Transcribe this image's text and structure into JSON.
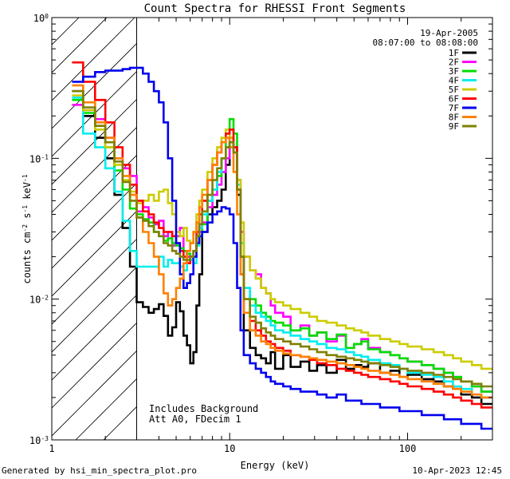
{
  "chart_data": {
    "type": "line",
    "title": "Count Spectra for RHESSI Front Segments",
    "xlabel": "Energy (keV)",
    "ylabel": "counts cm",
    "ylabel_sup1": "-2",
    "ylabel_mid": " s",
    "ylabel_sup2": "-1",
    "ylabel_tail": " keV",
    "ylabel_sup3": "-1",
    "xscale": "log",
    "yscale": "log",
    "xlim": [
      1,
      300
    ],
    "ylim": [
      0.001,
      1
    ],
    "x_ticks": [
      {
        "value": 1,
        "label": "1"
      },
      {
        "value": 10,
        "label": "10"
      },
      {
        "value": 100,
        "label": "100"
      }
    ],
    "y_ticks": [
      {
        "value": 0.001,
        "base": "10",
        "exp": "-3"
      },
      {
        "value": 0.01,
        "base": "10",
        "exp": "-2"
      },
      {
        "value": 0.1,
        "base": "10",
        "exp": "-1"
      },
      {
        "value": 1,
        "base": "10",
        "exp": "0"
      }
    ],
    "legend_position": "top-right",
    "date_text": "19-Apr-2005",
    "time_text": "08:07:00 to 08:08:00",
    "annotation_line1": "Includes Background",
    "annotation_line2": "Att A0, FDecim 1",
    "hatched_below_keV": 3,
    "energy_bins_keV": [
      1.3,
      1.5,
      1.75,
      2.0,
      2.25,
      2.5,
      2.75,
      3.0,
      3.25,
      3.5,
      3.75,
      4.0,
      4.25,
      4.5,
      4.75,
      5.0,
      5.25,
      5.5,
      5.75,
      6.0,
      6.25,
      6.5,
      6.75,
      7.0,
      7.5,
      8.0,
      8.5,
      9.0,
      9.5,
      10.0,
      10.5,
      11.0,
      11.5,
      12.0,
      13.0,
      14.0,
      15.0,
      16.0,
      17.0,
      18.0,
      20.0,
      22.0,
      25.0,
      28.0,
      31.0,
      35.0,
      40.0,
      45.0,
      50.0,
      55.0,
      60.0,
      70.0,
      80.0,
      90.0,
      100.0,
      120.0,
      140.0,
      160.0,
      180.0,
      200.0,
      230.0,
      260.0,
      300.0
    ],
    "series": [
      {
        "name": "1F",
        "color": "#000000",
        "values": [
          0.3,
          0.2,
          0.14,
          0.1,
          0.055,
          0.032,
          0.017,
          0.0095,
          0.0088,
          0.008,
          0.0085,
          0.0092,
          0.0076,
          0.0055,
          0.0063,
          0.0095,
          0.0082,
          0.0055,
          0.0047,
          0.0035,
          0.0042,
          0.009,
          0.015,
          0.03,
          0.04,
          0.045,
          0.05,
          0.06,
          0.09,
          0.14,
          0.12,
          0.055,
          0.015,
          0.006,
          0.0045,
          0.004,
          0.0038,
          0.0035,
          0.0042,
          0.0032,
          0.004,
          0.0033,
          0.0036,
          0.0031,
          0.0034,
          0.003,
          0.0037,
          0.0032,
          0.0034,
          0.0033,
          0.0035,
          0.003,
          0.0031,
          0.0028,
          0.0029,
          0.0027,
          0.0026,
          0.0024,
          0.0023,
          0.0021,
          0.002,
          0.0018,
          0.0016
        ]
      },
      {
        "name": "2F",
        "color": "#ff00ff",
        "values": [
          0.24,
          0.22,
          0.19,
          0.14,
          0.1,
          0.085,
          0.075,
          0.042,
          0.045,
          0.038,
          0.034,
          0.036,
          0.028,
          0.03,
          0.024,
          0.028,
          0.032,
          0.022,
          0.02,
          0.019,
          0.022,
          0.028,
          0.03,
          0.035,
          0.045,
          0.055,
          0.065,
          0.08,
          0.1,
          0.13,
          0.12,
          0.07,
          0.03,
          0.02,
          0.016,
          0.015,
          0.012,
          0.011,
          0.009,
          0.008,
          0.0075,
          0.006,
          0.0065,
          0.0055,
          0.0058,
          0.005,
          0.0055,
          0.0045,
          0.0048,
          0.0052,
          0.0045,
          0.0042,
          0.004,
          0.0038,
          0.0036,
          0.0034,
          0.0032,
          0.003,
          0.0028,
          0.0026,
          0.0024,
          0.0022,
          0.002
        ]
      },
      {
        "name": "3F",
        "color": "#00dd00",
        "values": [
          0.26,
          0.21,
          0.17,
          0.12,
          0.082,
          0.06,
          0.044,
          0.04,
          0.037,
          0.035,
          0.03,
          0.028,
          0.026,
          0.027,
          0.025,
          0.024,
          0.023,
          0.022,
          0.021,
          0.02,
          0.022,
          0.025,
          0.028,
          0.034,
          0.05,
          0.06,
          0.075,
          0.1,
          0.15,
          0.19,
          0.15,
          0.07,
          0.025,
          0.012,
          0.01,
          0.009,
          0.008,
          0.0075,
          0.007,
          0.0068,
          0.0065,
          0.006,
          0.0062,
          0.0055,
          0.0058,
          0.0052,
          0.0056,
          0.0045,
          0.0048,
          0.005,
          0.0044,
          0.0042,
          0.004,
          0.0038,
          0.0036,
          0.0034,
          0.0032,
          0.003,
          0.0028,
          0.0026,
          0.0024,
          0.0022,
          0.002
        ]
      },
      {
        "name": "4F",
        "color": "#00eeee",
        "values": [
          0.27,
          0.15,
          0.12,
          0.085,
          0.058,
          0.036,
          0.022,
          0.017,
          0.017,
          0.017,
          0.017,
          0.02,
          0.017,
          0.019,
          0.018,
          0.018,
          0.017,
          0.016,
          0.018,
          0.019,
          0.018,
          0.024,
          0.032,
          0.04,
          0.05,
          0.06,
          0.08,
          0.1,
          0.12,
          0.13,
          0.11,
          0.065,
          0.025,
          0.012,
          0.009,
          0.008,
          0.0075,
          0.007,
          0.0065,
          0.006,
          0.0058,
          0.0055,
          0.0052,
          0.005,
          0.0048,
          0.0045,
          0.0044,
          0.0042,
          0.004,
          0.0039,
          0.0037,
          0.0035,
          0.0034,
          0.0032,
          0.003,
          0.0029,
          0.0028,
          0.0026,
          0.0024,
          0.0023,
          0.0021,
          0.002,
          0.0018
        ]
      },
      {
        "name": "5F",
        "color": "#cccc00",
        "values": [
          0.28,
          0.22,
          0.16,
          0.12,
          0.09,
          0.07,
          0.058,
          0.048,
          0.05,
          0.055,
          0.05,
          0.058,
          0.06,
          0.048,
          0.04,
          0.03,
          0.028,
          0.032,
          0.026,
          0.025,
          0.03,
          0.04,
          0.05,
          0.06,
          0.08,
          0.1,
          0.12,
          0.14,
          0.16,
          0.14,
          0.11,
          0.07,
          0.035,
          0.02,
          0.016,
          0.014,
          0.012,
          0.011,
          0.01,
          0.0095,
          0.009,
          0.0085,
          0.008,
          0.0075,
          0.007,
          0.0068,
          0.0065,
          0.0062,
          0.006,
          0.0058,
          0.0055,
          0.0052,
          0.005,
          0.0048,
          0.0046,
          0.0044,
          0.0042,
          0.004,
          0.0038,
          0.0036,
          0.0034,
          0.0032,
          0.003
        ]
      },
      {
        "name": "6F",
        "color": "#ff0000",
        "values": [
          0.48,
          0.35,
          0.26,
          0.18,
          0.12,
          0.09,
          0.065,
          0.05,
          0.042,
          0.04,
          0.035,
          0.032,
          0.03,
          0.03,
          0.028,
          0.025,
          0.022,
          0.02,
          0.018,
          0.02,
          0.022,
          0.03,
          0.04,
          0.05,
          0.07,
          0.09,
          0.11,
          0.13,
          0.15,
          0.16,
          0.12,
          0.06,
          0.02,
          0.01,
          0.007,
          0.006,
          0.0055,
          0.005,
          0.0048,
          0.0045,
          0.0043,
          0.004,
          0.0039,
          0.0037,
          0.0035,
          0.0034,
          0.0032,
          0.0031,
          0.003,
          0.0029,
          0.0028,
          0.0027,
          0.0026,
          0.0025,
          0.0024,
          0.0023,
          0.0022,
          0.0021,
          0.002,
          0.0019,
          0.0018,
          0.0017,
          0.0016
        ]
      },
      {
        "name": "7F",
        "color": "#0000ee",
        "values": [
          0.35,
          0.38,
          0.41,
          0.42,
          0.42,
          0.43,
          0.44,
          0.44,
          0.4,
          0.35,
          0.3,
          0.25,
          0.18,
          0.1,
          0.05,
          0.025,
          0.015,
          0.012,
          0.013,
          0.015,
          0.02,
          0.025,
          0.028,
          0.03,
          0.035,
          0.04,
          0.042,
          0.045,
          0.044,
          0.04,
          0.025,
          0.012,
          0.006,
          0.004,
          0.0035,
          0.0032,
          0.003,
          0.0028,
          0.0026,
          0.0025,
          0.0024,
          0.0023,
          0.0022,
          0.0022,
          0.0021,
          0.002,
          0.0021,
          0.0019,
          0.0019,
          0.0018,
          0.0018,
          0.0017,
          0.0017,
          0.0016,
          0.0016,
          0.0015,
          0.0015,
          0.0014,
          0.0014,
          0.0013,
          0.0013,
          0.0012,
          0.0012
        ]
      },
      {
        "name": "8F",
        "color": "#ff8000",
        "values": [
          0.33,
          0.25,
          0.18,
          0.14,
          0.1,
          0.075,
          0.055,
          0.038,
          0.03,
          0.025,
          0.02,
          0.015,
          0.011,
          0.009,
          0.01,
          0.012,
          0.014,
          0.018,
          0.022,
          0.025,
          0.03,
          0.035,
          0.045,
          0.055,
          0.07,
          0.09,
          0.11,
          0.13,
          0.14,
          0.12,
          0.08,
          0.04,
          0.015,
          0.008,
          0.006,
          0.0055,
          0.005,
          0.0048,
          0.0045,
          0.0043,
          0.0041,
          0.004,
          0.0039,
          0.0038,
          0.0037,
          0.0036,
          0.0035,
          0.0034,
          0.0033,
          0.0032,
          0.0031,
          0.003,
          0.0029,
          0.0028,
          0.0027,
          0.0026,
          0.0025,
          0.0024,
          0.0023,
          0.0022,
          0.0021,
          0.002,
          0.0019
        ]
      },
      {
        "name": "9F",
        "color": "#808000",
        "values": [
          0.3,
          0.23,
          0.17,
          0.13,
          0.095,
          0.068,
          0.05,
          0.038,
          0.036,
          0.033,
          0.03,
          0.028,
          0.025,
          0.024,
          0.022,
          0.021,
          0.02,
          0.019,
          0.019,
          0.02,
          0.022,
          0.028,
          0.034,
          0.042,
          0.055,
          0.07,
          0.085,
          0.1,
          0.12,
          0.13,
          0.11,
          0.06,
          0.02,
          0.01,
          0.0075,
          0.0068,
          0.0062,
          0.0058,
          0.0055,
          0.0052,
          0.005,
          0.0048,
          0.0046,
          0.0044,
          0.0042,
          0.004,
          0.0039,
          0.0038,
          0.0037,
          0.0036,
          0.0035,
          0.0034,
          0.0033,
          0.0032,
          0.0031,
          0.003,
          0.0029,
          0.0028,
          0.0027,
          0.0026,
          0.0025,
          0.0024,
          0.0023
        ]
      }
    ]
  },
  "footer": {
    "left": "Generated by hsi_min_spectra_plot.pro",
    "right": "10-Apr-2023 12:45"
  }
}
